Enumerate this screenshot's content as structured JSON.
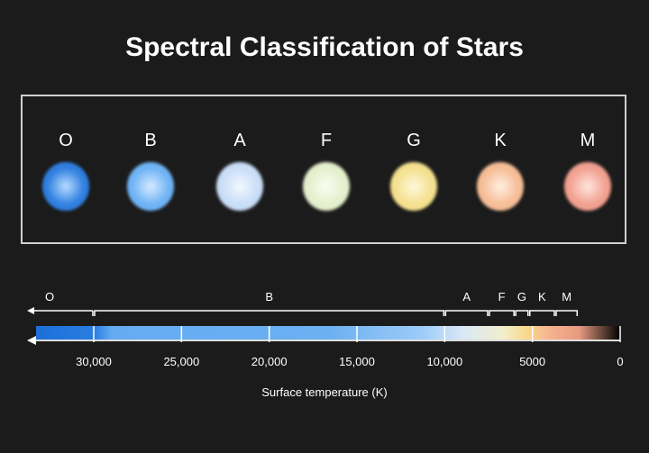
{
  "title": "Spectral Classification of Stars",
  "stars": [
    {
      "label": "O",
      "color": "#2f7fe0",
      "glow": "#b8dcff"
    },
    {
      "label": "B",
      "color": "#6fb3f5",
      "glow": "#d6ebff"
    },
    {
      "label": "A",
      "color": "#c9ddf7",
      "glow": "#f2f8ff"
    },
    {
      "label": "F",
      "color": "#e4efcc",
      "glow": "#fbfdf2"
    },
    {
      "label": "G",
      "color": "#f4e08e",
      "glow": "#fff8dc"
    },
    {
      "label": "K",
      "color": "#f6bd96",
      "glow": "#fff0e2"
    },
    {
      "label": "M",
      "color": "#f2a08f",
      "glow": "#ffe6e0"
    }
  ],
  "scale": {
    "axis_label": "Surface temperature (K)",
    "ticks": [
      {
        "value": 30000,
        "label": "30,000"
      },
      {
        "value": 25000,
        "label": "25,000"
      },
      {
        "value": 20000,
        "label": "20,000"
      },
      {
        "value": 15000,
        "label": "15,000"
      },
      {
        "value": 10000,
        "label": "10,000"
      },
      {
        "value": 5000,
        "label": "5000"
      },
      {
        "value": 0,
        "label": "0"
      }
    ],
    "classes": [
      {
        "label": "O",
        "from": null,
        "to": 30000
      },
      {
        "label": "B",
        "from": 30000,
        "to": 10000
      },
      {
        "label": "A",
        "from": 10000,
        "to": 7500
      },
      {
        "label": "F",
        "from": 7500,
        "to": 6000
      },
      {
        "label": "G",
        "from": 6000,
        "to": 5200
      },
      {
        "label": "K",
        "from": 5200,
        "to": 3700
      },
      {
        "label": "M",
        "from": 3700,
        "to": 2400
      }
    ]
  }
}
